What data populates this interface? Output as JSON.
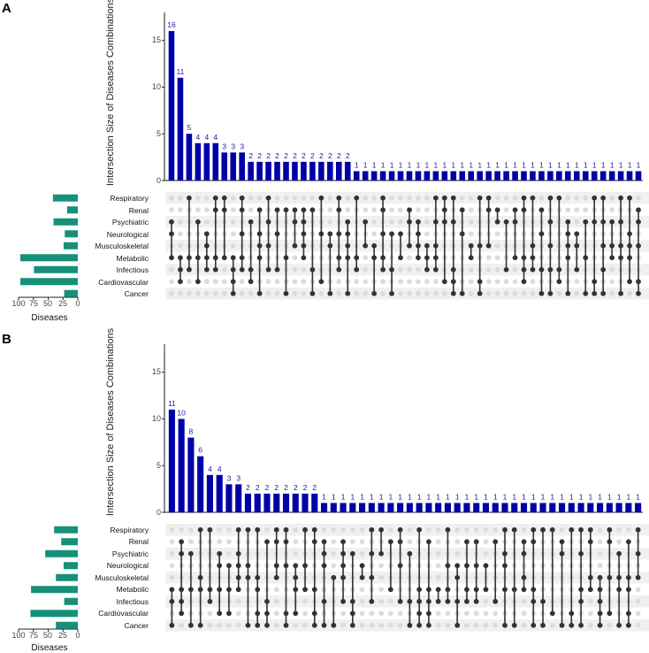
{
  "panels": [
    {
      "label": "A",
      "y_axis_title": "Intersection Size of Diseases Combinations",
      "y_ticks": [
        "0",
        "5",
        "10",
        "15"
      ],
      "set_axis_title": "Diseases",
      "set_ticks": [
        "100",
        "75",
        "50",
        "25",
        "0"
      ],
      "sets": [
        "Respiratory",
        "Renal",
        "Psychiatric",
        "Neurological",
        "Musculoskeletal",
        "Metabolic",
        "Infectious",
        "Cardiovascular",
        "Cancer"
      ]
    },
    {
      "label": "B",
      "y_axis_title": "Intersection Size of Diseases Combinations",
      "y_ticks": [
        "0",
        "5",
        "10",
        "15"
      ],
      "set_axis_title": "Diseases",
      "set_ticks": [
        "100",
        "75",
        "50",
        "25",
        "0"
      ],
      "sets": [
        "Respiratory",
        "Renal",
        "Psychiatric",
        "Neurological",
        "Musculoskeletal",
        "Metabolic",
        "Infectious",
        "Cardiovascular",
        "Cancer"
      ]
    }
  ],
  "chart_data": [
    {
      "type": "upset",
      "title": "A",
      "ylabel": "Intersection Size of Diseases Combinations",
      "ylim": [
        0,
        18
      ],
      "set_xlabel": "Diseases",
      "set_xlim": [
        0,
        100
      ],
      "sets": [
        "Respiratory",
        "Renal",
        "Psychiatric",
        "Neurological",
        "Musculoskeletal",
        "Metabolic",
        "Infectious",
        "Cardiovascular",
        "Cancer"
      ],
      "set_sizes": [
        42,
        18,
        41,
        22,
        24,
        97,
        74,
        97,
        23
      ],
      "intersection_sizes": [
        16,
        11,
        5,
        4,
        4,
        4,
        3,
        3,
        3,
        2,
        2,
        2,
        2,
        2,
        2,
        2,
        2,
        2,
        2,
        2,
        2,
        1,
        1,
        1,
        1,
        1,
        1,
        1,
        1,
        1,
        1,
        1,
        1,
        1,
        1,
        1,
        1,
        1,
        1,
        1,
        1,
        1,
        1,
        1,
        1,
        1,
        1,
        1,
        1,
        1,
        1,
        1,
        1,
        1
      ]
    },
    {
      "type": "upset",
      "title": "B",
      "ylabel": "Intersection Size of Diseases Combinations",
      "ylim": [
        0,
        18
      ],
      "set_xlabel": "Diseases",
      "set_xlim": [
        0,
        100
      ],
      "sets": [
        "Respiratory",
        "Renal",
        "Psychiatric",
        "Neurological",
        "Musculoskeletal",
        "Metabolic",
        "Infectious",
        "Cardiovascular",
        "Cancer"
      ],
      "set_sizes": [
        40,
        28,
        55,
        24,
        37,
        79,
        23,
        80,
        37
      ],
      "intersection_sizes": [
        11,
        10,
        8,
        6,
        4,
        4,
        3,
        3,
        2,
        2,
        2,
        2,
        2,
        2,
        2,
        2,
        1,
        1,
        1,
        1,
        1,
        1,
        1,
        1,
        1,
        1,
        1,
        1,
        1,
        1,
        1,
        1,
        1,
        1,
        1,
        1,
        1,
        1,
        1,
        1,
        1,
        1,
        1,
        1,
        1,
        1,
        1,
        1,
        1,
        1
      ]
    }
  ]
}
